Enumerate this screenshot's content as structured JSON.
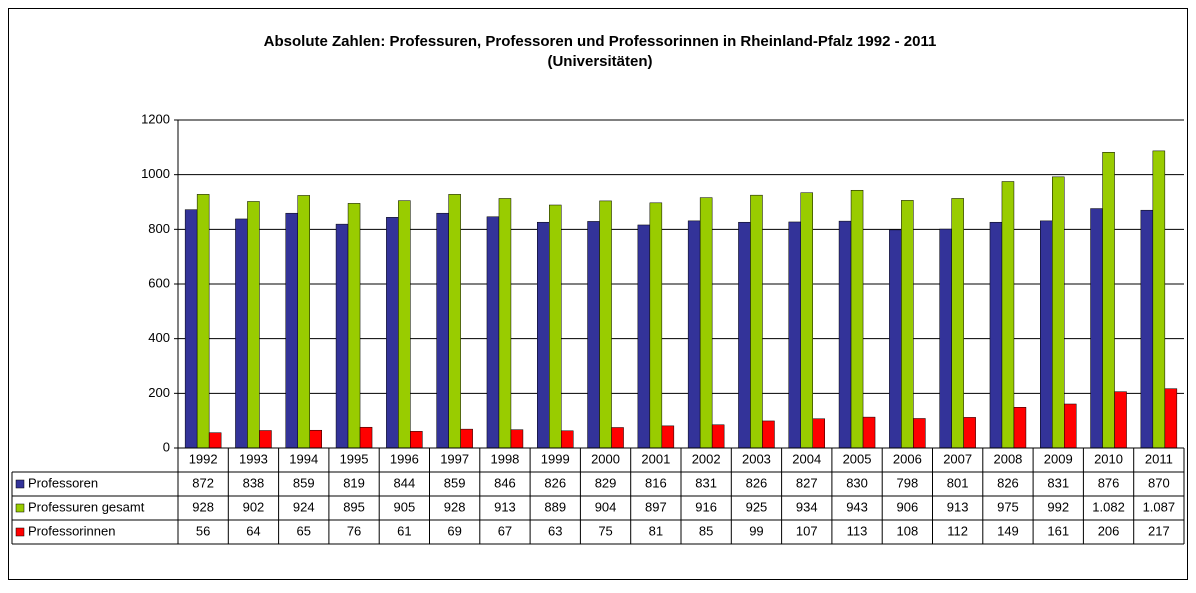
{
  "chart_data": {
    "type": "bar",
    "title": "Absolute Zahlen: Professuren, Professoren und Professorinnen in Rheinland-Pfalz 1992 - 2011",
    "subtitle": "(Universitäten)",
    "categories": [
      "1992",
      "1993",
      "1994",
      "1995",
      "1996",
      "1997",
      "1998",
      "1999",
      "2000",
      "2001",
      "2002",
      "2003",
      "2004",
      "2005",
      "2006",
      "2007",
      "2008",
      "2009",
      "2010",
      "2011"
    ],
    "series": [
      {
        "name": "Professoren",
        "color": "#333399",
        "values": [
          872,
          838,
          859,
          819,
          844,
          859,
          846,
          826,
          829,
          816,
          831,
          826,
          827,
          830,
          798,
          801,
          826,
          831,
          876,
          870
        ]
      },
      {
        "name": "Professuren gesamt",
        "color": "#99cc00",
        "values": [
          928,
          902,
          924,
          895,
          905,
          928,
          913,
          889,
          904,
          897,
          916,
          925,
          934,
          943,
          906,
          913,
          975,
          992,
          1082,
          1087
        ],
        "value_labels": [
          "928",
          "902",
          "924",
          "895",
          "905",
          "928",
          "913",
          "889",
          "904",
          "897",
          "916",
          "925",
          "934",
          "943",
          "906",
          "913",
          "975",
          "992",
          "1.082",
          "1.087"
        ]
      },
      {
        "name": "Professorinnen",
        "color": "#ff0000",
        "values": [
          56,
          64,
          65,
          76,
          61,
          69,
          67,
          63,
          75,
          81,
          85,
          99,
          107,
          113,
          108,
          112,
          149,
          161,
          206,
          217
        ]
      }
    ],
    "ylim": [
      0,
      1200
    ],
    "yticks": [
      0,
      200,
      400,
      600,
      800,
      1000,
      1200
    ],
    "grid": true,
    "legend": "table"
  }
}
